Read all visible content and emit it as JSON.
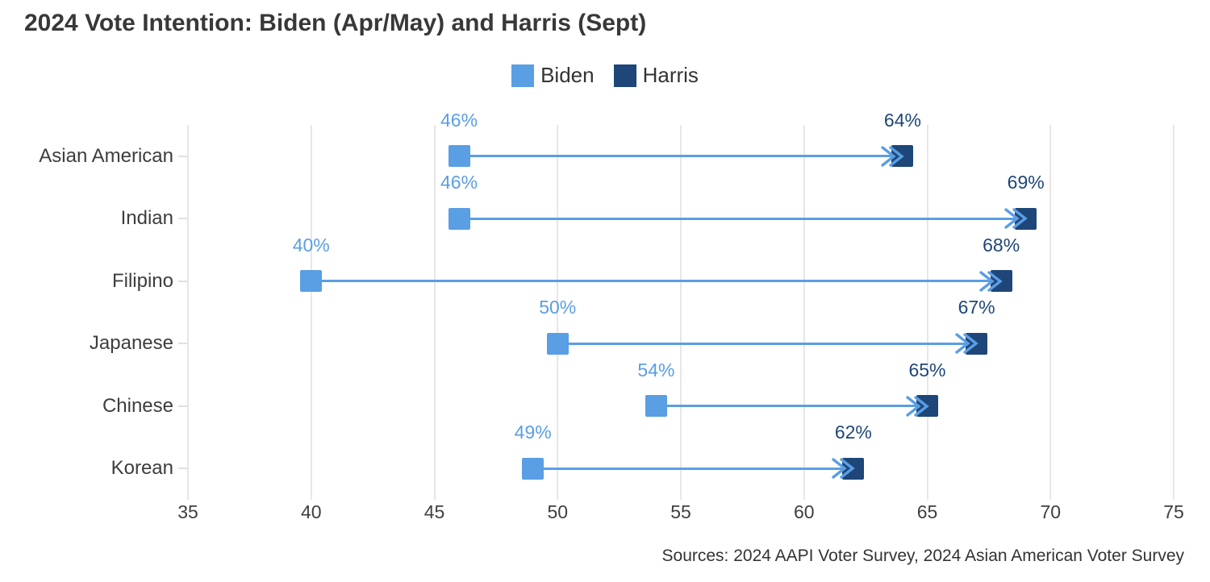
{
  "title": "2024 Vote Intention: Biden (Apr/May) and Harris (Sept)",
  "source": "Sources: 2024 AAPI Voter Survey, 2024 Asian American Voter Survey",
  "colors": {
    "biden": "#5A9EE4",
    "harris": "#1E4678",
    "gridline": "#e7e7e7",
    "axis_text": "#3f3f3f",
    "category_text": "#3d3d3d",
    "title_text": "#383838"
  },
  "chart_data": {
    "type": "dumbbell-arrow",
    "title": "2024 Vote Intention: Biden (Apr/May) and Harris (Sept)",
    "categories": [
      "Asian American",
      "Indian",
      "Filipino",
      "Japanese",
      "Chinese",
      "Korean"
    ],
    "series": [
      {
        "name": "Biden",
        "color": "#5A9EE4",
        "values": [
          46,
          46,
          40,
          50,
          54,
          49
        ]
      },
      {
        "name": "Harris",
        "color": "#1E4678",
        "values": [
          64,
          69,
          68,
          67,
          65,
          62
        ]
      }
    ],
    "value_suffix": "%",
    "xlim": [
      35,
      75
    ],
    "xticks": [
      35,
      40,
      45,
      50,
      55,
      60,
      65,
      70,
      75
    ],
    "grid": true,
    "legend_position": "top-center",
    "legend": [
      {
        "label": "Biden",
        "color": "#5A9EE4"
      },
      {
        "label": "Harris",
        "color": "#1E4678"
      }
    ],
    "annotations": {
      "source": "Sources: 2024 AAPI Voter Survey, 2024 Asian American Voter Survey"
    }
  }
}
